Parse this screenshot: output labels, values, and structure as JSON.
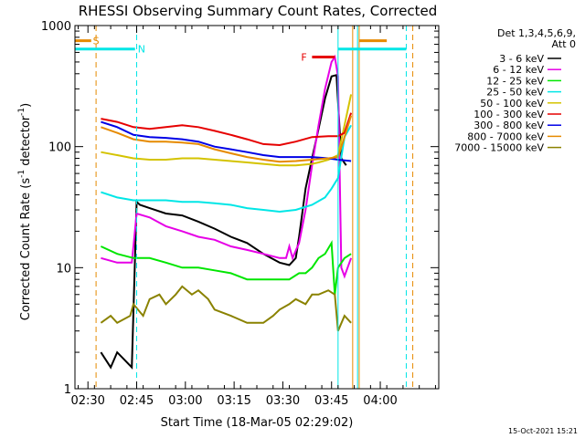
{
  "chart_data": {
    "type": "line",
    "title": "RHESSI Observing Summary Count Rates, Corrected",
    "xlabel": "Start Time (18-Mar-05 02:29:02)",
    "ylabel_main": "Corrected Count Rate (s",
    "ylabel_sup1": "-1",
    "ylabel_mid": " detector",
    "ylabel_sup2": "-1",
    "ylabel_end": ")",
    "y_scale": "log",
    "ylim": [
      1,
      1000
    ],
    "xlim_minutes": [
      -3.0,
      109.0
    ],
    "x_ticks": [
      {
        "t": 1,
        "label": "02:30"
      },
      {
        "t": 16,
        "label": "02:45"
      },
      {
        "t": 31,
        "label": "03:00"
      },
      {
        "t": 46,
        "label": "03:15"
      },
      {
        "t": 61,
        "label": "03:30"
      },
      {
        "t": 76,
        "label": "03:45"
      },
      {
        "t": 91,
        "label": "04:00"
      }
    ],
    "y_ticks": [
      {
        "v": 1,
        "label": "1"
      },
      {
        "v": 10,
        "label": "10"
      },
      {
        "v": 100,
        "label": "100"
      },
      {
        "v": 1000,
        "label": "1000"
      }
    ],
    "legend_header": [
      "Det 1,3,4,5,6,9,",
      "Att 0"
    ],
    "series": [
      {
        "name": "3 - 6 keV",
        "color": "#000000",
        "x": [
          5,
          8,
          10,
          14.5,
          16,
          17,
          20,
          25,
          30,
          35,
          40,
          45,
          50,
          55,
          60,
          63,
          65,
          66,
          68,
          70,
          72,
          74,
          76,
          77.5,
          79,
          80.5
        ],
        "y": [
          2,
          1.5,
          2,
          1.5,
          35,
          33,
          31,
          28,
          27,
          24,
          21,
          18,
          16,
          13,
          11,
          10.5,
          12,
          18,
          45,
          80,
          140,
          250,
          380,
          390,
          80,
          70
        ]
      },
      {
        "name": "6 - 12 keV",
        "color": "#e600e6",
        "x": [
          5,
          10,
          14.5,
          16,
          20,
          25,
          30,
          35,
          40,
          45,
          50,
          55,
          60,
          62,
          63,
          64,
          66,
          68,
          70,
          72,
          74,
          76,
          77,
          78,
          79,
          80,
          82
        ],
        "y": [
          12,
          11,
          11,
          28,
          26,
          22,
          20,
          18,
          17,
          15,
          14,
          13,
          12,
          12,
          15,
          12,
          16,
          30,
          70,
          150,
          300,
          500,
          550,
          380,
          10,
          8.5,
          12
        ]
      },
      {
        "name": "12 - 25 keV",
        "color": "#00e600",
        "x": [
          5,
          10,
          15,
          20,
          25,
          30,
          35,
          40,
          45,
          50,
          55,
          60,
          63,
          66,
          68,
          70,
          72,
          74,
          76,
          77,
          78,
          80,
          82
        ],
        "y": [
          15,
          13,
          12,
          12,
          11,
          10,
          10,
          9.5,
          9,
          8,
          8,
          8,
          8,
          9,
          9,
          10,
          12,
          13,
          16,
          6,
          10,
          12,
          13
        ]
      },
      {
        "name": "25 - 50 keV",
        "color": "#00e6e6",
        "x": [
          5,
          10,
          15,
          20,
          25,
          30,
          35,
          40,
          45,
          50,
          55,
          60,
          65,
          70,
          74,
          76,
          78,
          80,
          82
        ],
        "y": [
          42,
          38,
          36,
          36,
          36,
          35,
          35,
          34,
          33,
          31,
          30,
          29,
          30,
          33,
          38,
          45,
          55,
          120,
          150
        ]
      },
      {
        "name": "50 - 100 keV",
        "color": "#d4c300",
        "x": [
          5,
          10,
          15,
          20,
          25,
          30,
          35,
          40,
          45,
          50,
          55,
          60,
          65,
          70,
          72,
          75,
          78,
          80,
          82
        ],
        "y": [
          90,
          85,
          80,
          78,
          78,
          80,
          80,
          78,
          76,
          74,
          72,
          70,
          70,
          72,
          74,
          78,
          85,
          150,
          270
        ]
      },
      {
        "name": "100 - 300 keV",
        "color": "#e60000",
        "x": [
          5,
          10,
          15,
          20,
          25,
          30,
          35,
          40,
          45,
          50,
          55,
          60,
          65,
          70,
          75,
          78,
          80,
          82
        ],
        "y": [
          170,
          160,
          145,
          140,
          145,
          150,
          145,
          135,
          125,
          115,
          105,
          103,
          110,
          120,
          122,
          122,
          130,
          190
        ]
      },
      {
        "name": "300 - 800 keV",
        "color": "#0000e6",
        "x": [
          5,
          10,
          15,
          20,
          25,
          30,
          35,
          40,
          45,
          50,
          55,
          60,
          65,
          70,
          75,
          78,
          80,
          82
        ],
        "y": [
          160,
          145,
          125,
          120,
          118,
          115,
          110,
          100,
          95,
          90,
          85,
          82,
          82,
          82,
          80,
          78,
          77,
          76
        ]
      },
      {
        "name": "800 - 7000 keV",
        "color": "#e68a00",
        "x": [
          5,
          10,
          15,
          20,
          25,
          30,
          35,
          40,
          45,
          50,
          55,
          60,
          65,
          70,
          75,
          78,
          80,
          82
        ],
        "y": [
          145,
          130,
          115,
          110,
          110,
          108,
          105,
          95,
          88,
          82,
          78,
          75,
          76,
          78,
          80,
          82,
          120,
          180
        ]
      },
      {
        "name": "7000 - 15000 keV",
        "color": "#8a8200",
        "x": [
          5,
          8,
          10,
          14,
          15,
          18,
          20,
          23,
          25,
          28,
          30,
          33,
          35,
          38,
          40,
          45,
          50,
          55,
          58,
          60,
          63,
          65,
          68,
          70,
          72,
          75,
          77,
          78,
          80,
          82
        ],
        "y": [
          3.5,
          4,
          3.5,
          4,
          5,
          4,
          5.5,
          6,
          5,
          6,
          7,
          6,
          6.5,
          5.5,
          4.5,
          4,
          3.5,
          3.5,
          4,
          4.5,
          5,
          5.5,
          5,
          6,
          6,
          6.5,
          6,
          3,
          4,
          3.5
        ]
      }
    ],
    "markers": [
      {
        "label": "S",
        "color": "#e68a00",
        "x0": -3,
        "x1": 2,
        "y": 750,
        "label_x": 3.5
      },
      {
        "label": "N",
        "color": "#00e6e6",
        "x0": -3,
        "x1": 15.5,
        "y": 640,
        "label_x": 17.5
      },
      {
        "label": "F",
        "color": "#e60000",
        "x0": 70,
        "x1": 77,
        "y": 550,
        "label_x": 67.5
      }
    ],
    "right_markers": [
      {
        "color": "#e68a00",
        "x0": 84.5,
        "x1": 93,
        "y": 750
      },
      {
        "color": "#00e6e6",
        "x0": 78,
        "x1": 99,
        "y": 640
      }
    ],
    "vlines": [
      {
        "x": 3.5,
        "color": "#e68a00",
        "dashed": true
      },
      {
        "x": 16,
        "color": "#00e6e6",
        "dashed": true
      },
      {
        "x": 78,
        "color": "#00e6e6",
        "dashed": false
      },
      {
        "x": 82.5,
        "color": "#e68a00",
        "dashed": false
      },
      {
        "x": 84,
        "color": "#00e6e6",
        "dashed": false
      },
      {
        "x": 84.5,
        "color": "#e68a00",
        "dashed": false
      },
      {
        "x": 99,
        "color": "#00e6e6",
        "dashed": true
      },
      {
        "x": 101,
        "color": "#e68a00",
        "dashed": true
      }
    ]
  },
  "footer": {
    "timestamp": "15-Oct-2021 15:21"
  }
}
